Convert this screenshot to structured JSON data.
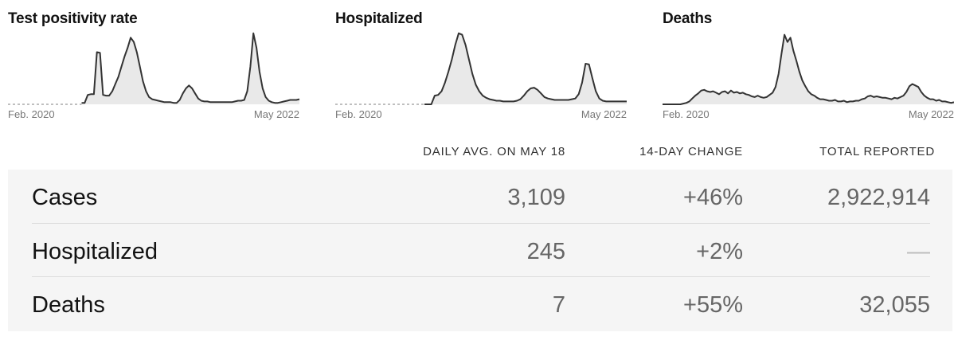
{
  "chart_data": [
    {
      "type": "area",
      "title": "Test positivity rate",
      "x_start_label": "Feb. 2020",
      "x_end_label": "May 2022",
      "no_data_until": 0.25,
      "relative_values": [
        0.02,
        0.02,
        0.02,
        0.02,
        0.02,
        0.02,
        0.02,
        0.02,
        0.02,
        0.02,
        0.02,
        0.02,
        0.02,
        0.02,
        0.02,
        0.02,
        0.02,
        0.02,
        0.02,
        0.02,
        0.02,
        0.02,
        0.02,
        0.02,
        0.02,
        0.02,
        0.13,
        0.14,
        0.14,
        0.72,
        0.71,
        0.13,
        0.12,
        0.12,
        0.18,
        0.28,
        0.38,
        0.52,
        0.66,
        0.78,
        0.92,
        0.86,
        0.72,
        0.52,
        0.32,
        0.18,
        0.1,
        0.07,
        0.06,
        0.05,
        0.04,
        0.03,
        0.03,
        0.03,
        0.02,
        0.02,
        0.06,
        0.15,
        0.22,
        0.26,
        0.22,
        0.15,
        0.08,
        0.05,
        0.04,
        0.04,
        0.03,
        0.03,
        0.03,
        0.03,
        0.03,
        0.03,
        0.03,
        0.03,
        0.04,
        0.05,
        0.05,
        0.06,
        0.18,
        0.52,
        0.98,
        0.78,
        0.45,
        0.22,
        0.1,
        0.05,
        0.03,
        0.02,
        0.02,
        0.03,
        0.04,
        0.05,
        0.06,
        0.06,
        0.06,
        0.07
      ]
    },
    {
      "type": "area",
      "title": "Hospitalized",
      "x_start_label": "Feb. 2020",
      "x_end_label": "May 2022",
      "no_data_until": 0.3,
      "relative_values": [
        0.0,
        0.0,
        0.0,
        0.0,
        0.0,
        0.0,
        0.0,
        0.0,
        0.0,
        0.0,
        0.0,
        0.0,
        0.0,
        0.0,
        0.0,
        0.0,
        0.0,
        0.0,
        0.0,
        0.0,
        0.0,
        0.0,
        0.0,
        0.0,
        0.0,
        0.0,
        0.0,
        0.0,
        0.0,
        0.12,
        0.13,
        0.18,
        0.3,
        0.45,
        0.62,
        0.82,
        0.98,
        0.96,
        0.82,
        0.62,
        0.42,
        0.27,
        0.18,
        0.12,
        0.09,
        0.07,
        0.06,
        0.05,
        0.05,
        0.04,
        0.04,
        0.04,
        0.04,
        0.05,
        0.07,
        0.12,
        0.18,
        0.22,
        0.23,
        0.2,
        0.15,
        0.1,
        0.08,
        0.07,
        0.06,
        0.06,
        0.06,
        0.06,
        0.06,
        0.07,
        0.08,
        0.14,
        0.3,
        0.56,
        0.55,
        0.36,
        0.18,
        0.08,
        0.05,
        0.04,
        0.04,
        0.04,
        0.04,
        0.04,
        0.04,
        0.04
      ]
    },
    {
      "type": "line",
      "title": "Deaths",
      "x_start_label": "Feb. 2020",
      "x_end_label": "May 2022",
      "relative_values": [
        0.0,
        0.0,
        0.0,
        0.0,
        0.0,
        0.0,
        0.0,
        0.01,
        0.02,
        0.04,
        0.08,
        0.12,
        0.15,
        0.19,
        0.2,
        0.18,
        0.17,
        0.18,
        0.16,
        0.14,
        0.17,
        0.18,
        0.15,
        0.19,
        0.16,
        0.17,
        0.15,
        0.16,
        0.14,
        0.13,
        0.11,
        0.1,
        0.12,
        0.1,
        0.09,
        0.1,
        0.13,
        0.16,
        0.24,
        0.42,
        0.7,
        0.96,
        0.86,
        0.92,
        0.74,
        0.6,
        0.45,
        0.33,
        0.25,
        0.18,
        0.14,
        0.12,
        0.09,
        0.07,
        0.07,
        0.06,
        0.05,
        0.05,
        0.06,
        0.04,
        0.04,
        0.05,
        0.03,
        0.04,
        0.04,
        0.05,
        0.05,
        0.07,
        0.08,
        0.11,
        0.12,
        0.1,
        0.11,
        0.1,
        0.09,
        0.09,
        0.08,
        0.07,
        0.09,
        0.08,
        0.1,
        0.12,
        0.17,
        0.25,
        0.28,
        0.26,
        0.24,
        0.17,
        0.12,
        0.09,
        0.07,
        0.07,
        0.05,
        0.06,
        0.04,
        0.04,
        0.03,
        0.02,
        0.03
      ]
    }
  ],
  "table": {
    "headers": [
      "DAILY AVG. ON MAY 18",
      "14-DAY CHANGE",
      "TOTAL REPORTED"
    ],
    "rows": [
      {
        "label": "Cases",
        "daily_avg": "3,109",
        "change": "+46%",
        "total": "2,922,914"
      },
      {
        "label": "Hospitalized",
        "daily_avg": "245",
        "change": "+2%",
        "total": "—"
      },
      {
        "label": "Deaths",
        "daily_avg": "7",
        "change": "+55%",
        "total": "32,055"
      }
    ]
  }
}
